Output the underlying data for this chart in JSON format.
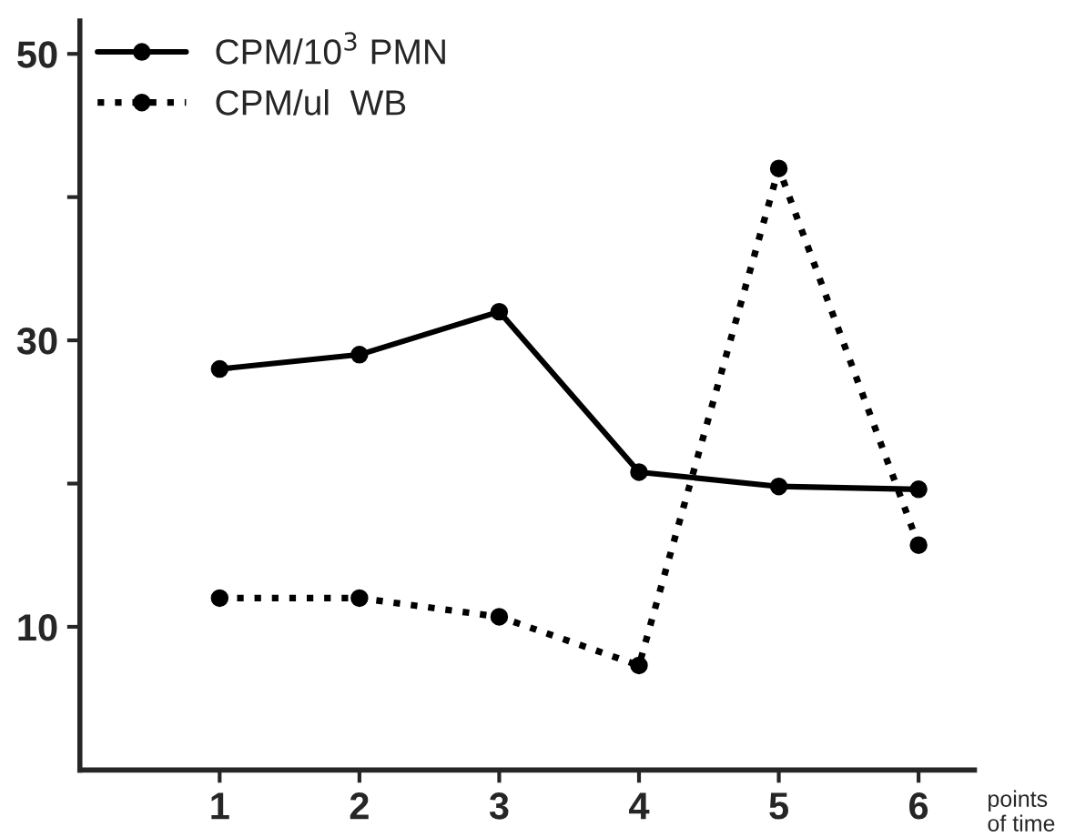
{
  "chart_data": {
    "type": "line",
    "xlabel": "points of time",
    "x": [
      1,
      2,
      3,
      4,
      5,
      6
    ],
    "series": [
      {
        "name": "CPM/10$^{3}$ PMN",
        "color": "#000000",
        "values": [
          28,
          29,
          32,
          20.8,
          19.8,
          19.6
        ],
        "line_style": "solid"
      },
      {
        "name": "CPM/ul  WB",
        "color": "#000000",
        "values": [
          12,
          12,
          10.7,
          7.3,
          42,
          15.7
        ],
        "line_style": "dotted"
      }
    ],
    "xlim": [
      0,
      6.4
    ],
    "ylim": [
      0,
      52.3
    ],
    "xticks": [
      1,
      2,
      3,
      4,
      5,
      6
    ],
    "yticks": [
      {
        "value": 10,
        "label": "10"
      },
      {
        "value": 20,
        "label": null
      },
      {
        "value": 30,
        "label": "30"
      },
      {
        "value": 40,
        "label": null
      },
      {
        "value": 50,
        "label": "50"
      }
    ],
    "marker": "circle",
    "legend": "top left",
    "grid": false
  }
}
